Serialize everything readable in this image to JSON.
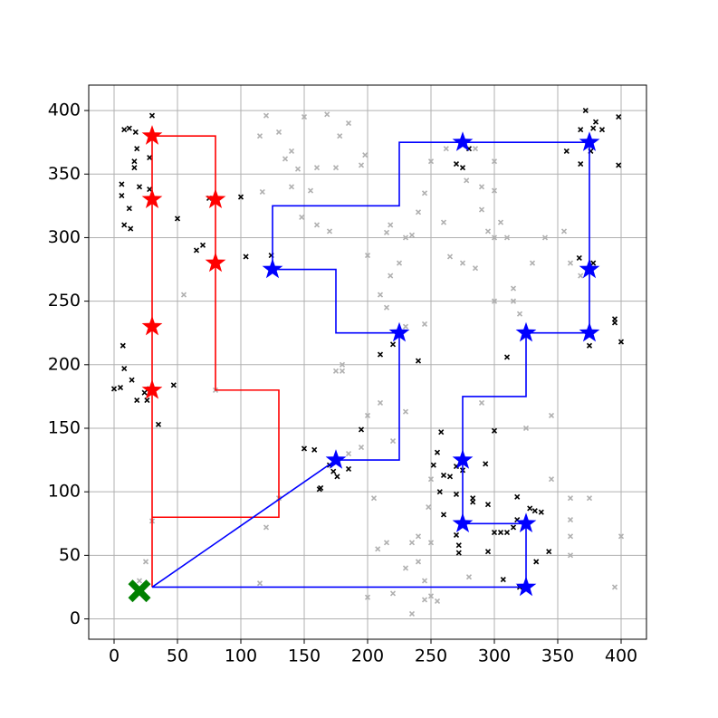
{
  "chart_data": {
    "type": "scatter",
    "xlim": [
      -20,
      420
    ],
    "ylim": [
      -16,
      420
    ],
    "xticks": [
      0,
      50,
      100,
      150,
      200,
      250,
      300,
      350,
      400
    ],
    "yticks": [
      0,
      50,
      100,
      150,
      200,
      250,
      300,
      350,
      400
    ],
    "grid": true,
    "series": [
      {
        "marker": "x",
        "color": "#b0b0b0",
        "x": [
          120,
          130,
          140,
          140,
          145,
          148,
          160,
          155,
          175,
          178,
          185,
          195,
          198,
          135,
          150,
          168,
          115,
          117,
          160,
          170,
          200,
          210,
          215,
          218,
          225,
          215,
          218,
          230,
          235,
          240,
          245,
          250,
          262,
          285,
          300,
          290,
          278,
          260,
          265,
          275,
          285,
          300,
          300,
          310,
          315,
          320,
          355,
          340,
          360,
          368,
          330,
          315,
          295,
          290,
          305,
          300,
          55,
          80,
          130,
          120,
          115,
          180,
          185,
          195,
          205,
          208,
          215,
          220,
          230,
          235,
          240,
          245,
          250,
          248,
          240,
          250,
          245,
          250,
          255,
          235,
          220,
          200,
          30,
          25,
          20,
          325,
          345,
          345,
          360,
          360,
          360,
          360,
          375,
          400,
          395,
          290,
          175,
          180,
          210,
          200,
          230,
          245,
          230,
          280
        ],
        "y": [
          396,
          383,
          340,
          368,
          354,
          316,
          355,
          337,
          355,
          380,
          390,
          357,
          365,
          362,
          395,
          397,
          380,
          336,
          310,
          305,
          286,
          255,
          245,
          270,
          280,
          304,
          310,
          300,
          302,
          320,
          335,
          360,
          370,
          370,
          360,
          340,
          345,
          312,
          285,
          280,
          276,
          250,
          300,
          300,
          260,
          240,
          305,
          300,
          280,
          270,
          280,
          250,
          305,
          322,
          312,
          337,
          255,
          180,
          95,
          72,
          28,
          195,
          130,
          135,
          95,
          55,
          60,
          140,
          163,
          60,
          45,
          30,
          110,
          88,
          65,
          60,
          15,
          18,
          14,
          4,
          20,
          17,
          77,
          45,
          30,
          150,
          160,
          110,
          95,
          78,
          65,
          50,
          95,
          65,
          25,
          170,
          195,
          200,
          170,
          160,
          230,
          232,
          40,
          33
        ]
      },
      {
        "marker": "x",
        "color": "#000000",
        "x": [
          8,
          12,
          17,
          30,
          18,
          16,
          16,
          28,
          20,
          6,
          6,
          12,
          8,
          13,
          28,
          50,
          65,
          70,
          75,
          100,
          104,
          124,
          0,
          5,
          7,
          8,
          14,
          18,
          24,
          26,
          28,
          35,
          47,
          150,
          158,
          162,
          163,
          170,
          173,
          176,
          185,
          195,
          210,
          220,
          240,
          258,
          255,
          252,
          257,
          260,
          265,
          270,
          270,
          260,
          270,
          272,
          272,
          275,
          283,
          283,
          295,
          293,
          300,
          295,
          300,
          305,
          310,
          315,
          318,
          328,
          332,
          337,
          343,
          333,
          318,
          310,
          307,
          320,
          270,
          275,
          280,
          357,
          368,
          368,
          372,
          376,
          378,
          380,
          385,
          398,
          398,
          367,
          378,
          395,
          395,
          400,
          375
        ],
        "y": [
          385,
          386,
          383,
          396,
          370,
          360,
          355,
          363,
          340,
          342,
          333,
          323,
          310,
          307,
          338,
          315,
          290,
          294,
          331,
          332,
          285,
          286,
          181,
          182,
          215,
          197,
          188,
          172,
          178,
          172,
          181,
          153,
          184,
          134,
          133,
          102,
          103,
          121,
          116,
          112,
          118,
          149,
          208,
          216,
          203,
          147,
          131,
          121,
          100,
          113,
          112,
          120,
          98,
          82,
          66,
          58,
          52,
          117,
          92,
          95,
          90,
          122,
          148,
          53,
          68,
          68,
          68,
          72,
          96,
          87,
          85,
          84,
          53,
          45,
          78,
          206,
          31,
          25,
          358,
          355,
          370,
          368,
          358,
          385,
          400,
          368,
          386,
          391,
          385,
          395,
          357,
          284,
          280,
          236,
          233,
          218,
          215
        ]
      },
      {
        "marker": "line",
        "color": "#ff0000",
        "x": [
          30,
          30,
          80,
          80,
          130,
          130,
          30,
          30
        ],
        "y": [
          25,
          380,
          380,
          180,
          180,
          80,
          80,
          25
        ]
      },
      {
        "marker": "line",
        "color": "#0000ff",
        "x": [
          30,
          325,
          325,
          275,
          275,
          325,
          325,
          375,
          375,
          225,
          225,
          125,
          125,
          175,
          175,
          225,
          225,
          175,
          30
        ],
        "y": [
          25,
          25,
          75,
          75,
          175,
          175,
          225,
          225,
          375,
          375,
          325,
          325,
          275,
          275,
          225,
          225,
          125,
          125,
          25
        ]
      },
      {
        "marker": "star",
        "color": "#ff0000",
        "x": [
          30,
          80,
          30,
          80,
          30,
          30
        ],
        "y": [
          380,
          330,
          330,
          280,
          230,
          180
        ]
      },
      {
        "marker": "star",
        "color": "#0000ff",
        "x": [
          275,
          375,
          125,
          375,
          225,
          325,
          375,
          175,
          275,
          275,
          325,
          325
        ],
        "y": [
          375,
          375,
          275,
          275,
          225,
          225,
          225,
          125,
          125,
          75,
          75,
          25
        ]
      },
      {
        "marker": "cross",
        "color": "#008000",
        "x": [
          20
        ],
        "y": [
          22
        ]
      }
    ]
  }
}
